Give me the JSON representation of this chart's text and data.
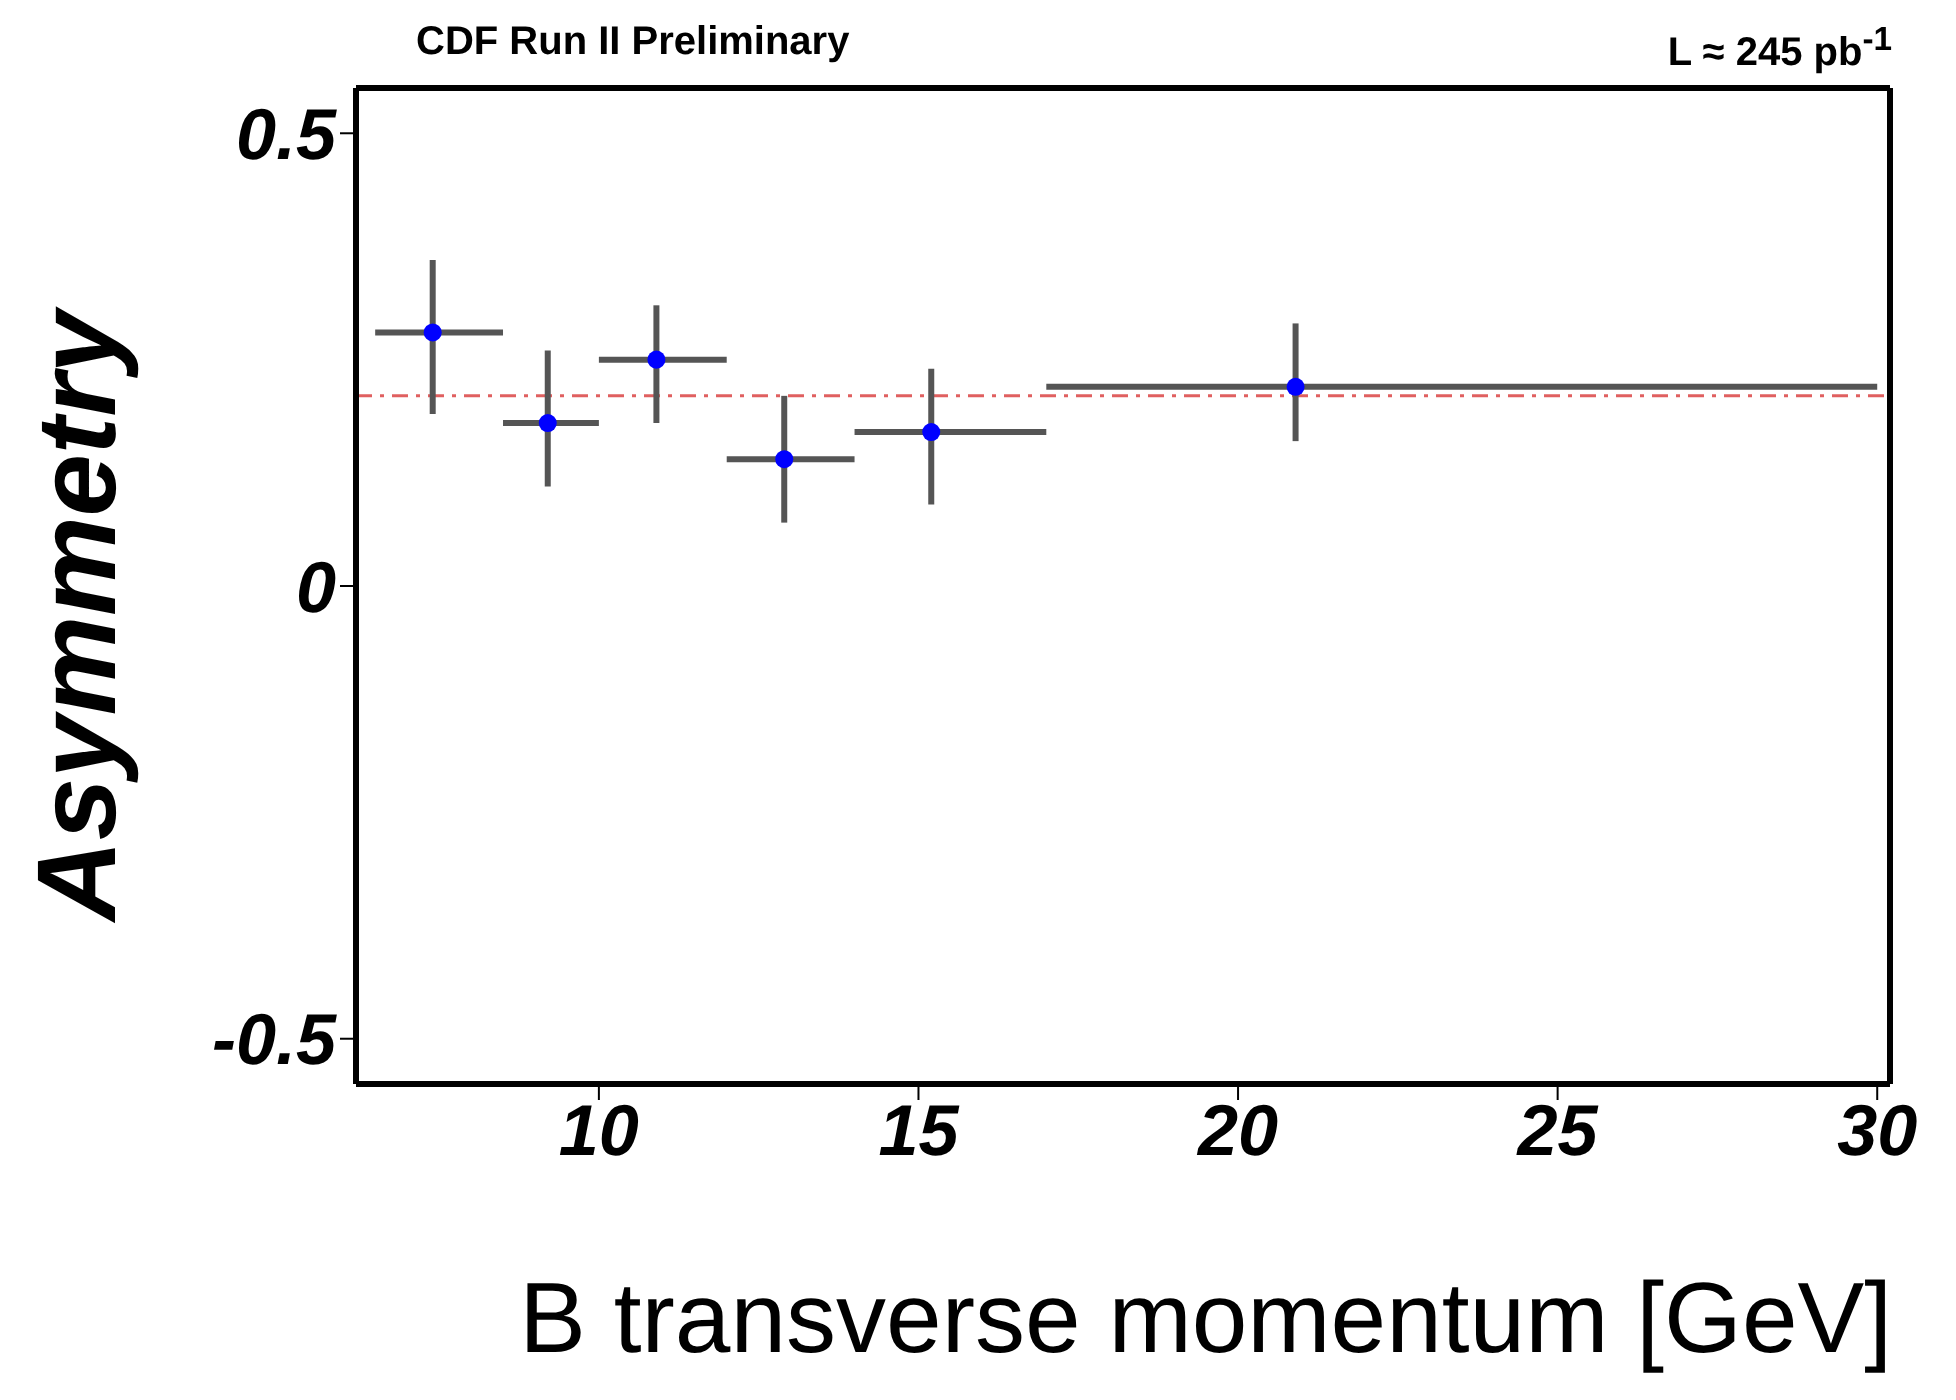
{
  "chart_data": {
    "type": "scatter",
    "title": "CDF Run II Preliminary",
    "annotations": [
      "L ≈ 245 pb$^{-1}$"
    ],
    "xlabel": "B transverse momentum [GeV]",
    "ylabel": "Asymmetry",
    "x": [
      7.4,
      9.2,
      10.9,
      12.9,
      15.2,
      20.9
    ],
    "series": [
      {
        "color": "#0000ff",
        "values": [
          0.28,
          0.18,
          0.25,
          0.14,
          0.17,
          0.22
        ],
        "errors": [
          [
            0.19,
            0.36
          ],
          [
            0.11,
            0.26
          ],
          [
            0.18,
            0.31
          ],
          [
            0.07,
            0.21
          ],
          [
            0.09,
            0.24
          ],
          [
            0.16,
            0.29
          ]
        ],
        "xerrors": [
          [
            6.5,
            8.5
          ],
          [
            8.5,
            10
          ],
          [
            10,
            12
          ],
          [
            12,
            14
          ],
          [
            14,
            17
          ],
          [
            17,
            30
          ]
        ]
      }
    ],
    "xlim": [
      6.2,
      30.2
    ],
    "xticks": [
      10,
      15,
      20,
      25,
      30
    ],
    "ylim": [
      -0.55,
      0.55
    ],
    "yticks": [
      {
        "value": -0.5,
        "label": "-0.5"
      },
      0,
      0.5
    ],
    "ref_lines": [
      {
        "axis": "y",
        "value": 0.21,
        "color": "#e06060",
        "line_style": "dashdot"
      }
    ],
    "marker": "circle",
    "grid": false
  }
}
